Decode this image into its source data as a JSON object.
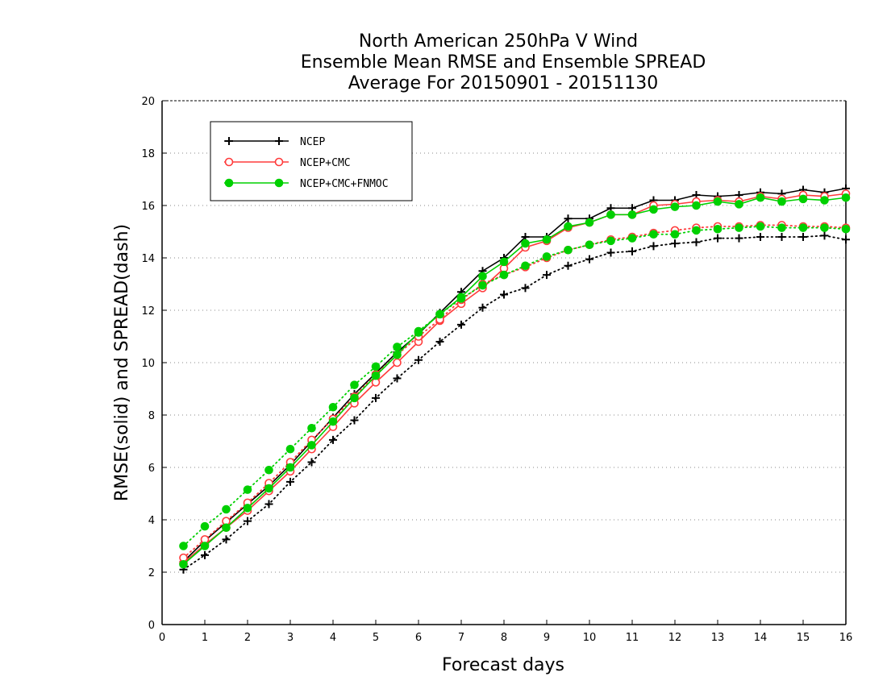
{
  "chart_data": {
    "type": "line",
    "title": [
      "North American 250hPa V Wind",
      "Ensemble Mean RMSE and Ensemble SPREAD",
      "Average For 20150901 - 20151130"
    ],
    "xlabel": "Forecast days",
    "ylabel": "RMSE(solid) and SPREAD(dash)",
    "xlim": [
      0,
      16
    ],
    "ylim": [
      0,
      20
    ],
    "xticks": [
      0,
      1,
      2,
      3,
      4,
      5,
      6,
      7,
      8,
      9,
      10,
      11,
      12,
      13,
      14,
      15,
      16
    ],
    "yticks": [
      0,
      2,
      4,
      6,
      8,
      10,
      12,
      14,
      16,
      18,
      20
    ],
    "grid": "dotted-horizontal",
    "legend_position": "top-left",
    "x": [
      0.5,
      1,
      1.5,
      2,
      2.5,
      3,
      3.5,
      4,
      4.5,
      5,
      5.5,
      6,
      6.5,
      7,
      7.5,
      8,
      8.5,
      9,
      9.5,
      10,
      10.5,
      11,
      11.5,
      12,
      12.5,
      13,
      13.5,
      14,
      14.5,
      15,
      15.5,
      16
    ],
    "series": [
      {
        "name": "NCEP",
        "color": "#000000",
        "marker": "plus",
        "rmse": [
          2.4,
          3.2,
          3.9,
          4.6,
          5.3,
          6.1,
          7.0,
          7.9,
          8.8,
          9.6,
          10.4,
          11.1,
          11.9,
          12.7,
          13.5,
          14.0,
          14.8,
          14.8,
          15.5,
          15.5,
          15.9,
          15.9,
          16.2,
          16.2,
          16.4,
          16.35,
          16.4,
          16.5,
          16.45,
          16.6,
          16.5,
          16.65
        ],
        "spread": [
          2.1,
          2.65,
          3.25,
          3.95,
          4.6,
          5.45,
          6.2,
          7.05,
          7.8,
          8.65,
          9.4,
          10.1,
          10.8,
          11.45,
          12.1,
          12.6,
          12.85,
          13.35,
          13.7,
          13.95,
          14.2,
          14.25,
          14.45,
          14.55,
          14.6,
          14.75,
          14.75,
          14.8,
          14.8,
          14.8,
          14.85,
          14.7
        ]
      },
      {
        "name": "NCEP+CMC",
        "color": "#ff3b3b",
        "marker": "open-circle",
        "rmse": [
          2.35,
          3.05,
          3.7,
          4.35,
          5.1,
          5.85,
          6.7,
          7.55,
          8.45,
          9.25,
          10.0,
          10.8,
          11.6,
          12.25,
          12.85,
          13.6,
          14.4,
          14.65,
          15.15,
          15.35,
          15.65,
          15.65,
          16.0,
          16.05,
          16.15,
          16.2,
          16.15,
          16.35,
          16.25,
          16.4,
          16.35,
          16.45
        ],
        "spread": [
          2.55,
          3.25,
          3.95,
          4.65,
          5.4,
          6.2,
          7.05,
          7.85,
          8.7,
          9.55,
          10.3,
          11.0,
          11.65,
          12.4,
          13.0,
          13.35,
          13.65,
          14.0,
          14.3,
          14.5,
          14.7,
          14.8,
          14.95,
          15.05,
          15.15,
          15.2,
          15.2,
          15.25,
          15.25,
          15.2,
          15.2,
          15.15
        ]
      },
      {
        "name": "NCEP+CMC+FNMOC",
        "color": "#00d000",
        "marker": "filled-circle",
        "rmse": [
          2.3,
          3.0,
          3.7,
          4.45,
          5.2,
          6.0,
          6.85,
          7.75,
          8.65,
          9.5,
          10.3,
          11.15,
          11.85,
          12.5,
          13.3,
          13.85,
          14.55,
          14.7,
          15.2,
          15.35,
          15.65,
          15.65,
          15.85,
          15.95,
          16.0,
          16.15,
          16.05,
          16.3,
          16.15,
          16.25,
          16.2,
          16.3
        ],
        "spread": [
          3.0,
          3.75,
          4.4,
          5.15,
          5.9,
          6.7,
          7.5,
          8.3,
          9.15,
          9.85,
          10.6,
          11.2,
          11.85,
          12.45,
          12.95,
          13.35,
          13.7,
          14.05,
          14.3,
          14.5,
          14.65,
          14.75,
          14.9,
          14.9,
          15.05,
          15.1,
          15.15,
          15.2,
          15.15,
          15.15,
          15.15,
          15.1
        ]
      }
    ]
  }
}
